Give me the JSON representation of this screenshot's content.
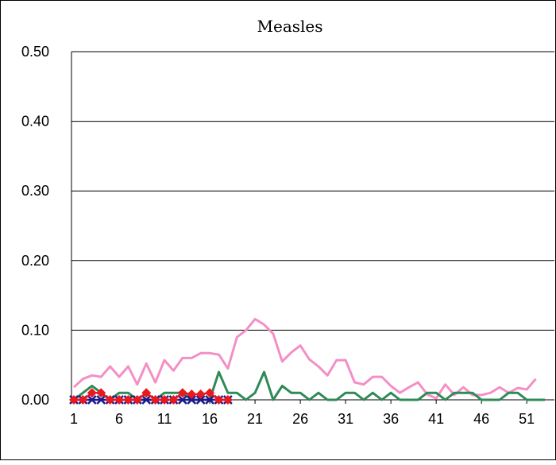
{
  "chart_data": {
    "type": "line",
    "title": "Measles",
    "xlabel": "",
    "ylabel": "",
    "ylim": [
      0,
      0.5
    ],
    "xlim": [
      1,
      53
    ],
    "y_ticks": [
      "0.00",
      "0.10",
      "0.20",
      "0.30",
      "0.40",
      "0.50"
    ],
    "x_ticks": [
      "1",
      "6",
      "11",
      "16",
      "21",
      "26",
      "31",
      "36",
      "41",
      "46",
      "51"
    ],
    "grid": "horizontal",
    "legend": "none",
    "series": [
      {
        "color": "#f48fc6",
        "marker": "none",
        "x": [
          1,
          2,
          3,
          4,
          5,
          6,
          7,
          8,
          9,
          10,
          11,
          12,
          13,
          14,
          15,
          16,
          17,
          18,
          19,
          20,
          21,
          22,
          23,
          24,
          25,
          26,
          27,
          28,
          29,
          30,
          31,
          32,
          33,
          34,
          35,
          36,
          37,
          38,
          39,
          40,
          41,
          42,
          43,
          44,
          45,
          46,
          47,
          48,
          49,
          50,
          51,
          52,
          53
        ],
        "values": [
          0.018,
          0.03,
          0.035,
          0.033,
          0.048,
          0.033,
          0.048,
          0.022,
          0.052,
          0.025,
          0.057,
          0.042,
          0.06,
          0.06,
          0.067,
          0.067,
          0.065,
          0.045,
          0.09,
          0.1,
          0.116,
          0.108,
          0.095,
          0.055,
          0.068,
          0.078,
          0.058,
          0.048,
          0.035,
          0.057,
          0.057,
          0.025,
          0.022,
          0.033,
          0.033,
          0.02,
          0.01,
          0.018,
          0.025,
          0.008,
          0.002,
          0.022,
          0.007,
          0.018,
          0.007,
          0.007,
          0.01,
          0.018,
          0.01,
          0.017,
          0.015,
          0.03,
          null
        ]
      },
      {
        "color": "#2e8b57",
        "marker": "none",
        "x": [
          1,
          2,
          3,
          4,
          5,
          6,
          7,
          8,
          9,
          10,
          11,
          12,
          13,
          14,
          15,
          16,
          17,
          18,
          19,
          20,
          21,
          22,
          23,
          24,
          25,
          26,
          27,
          28,
          29,
          30,
          31,
          32,
          33,
          34,
          35,
          36,
          37,
          38,
          39,
          40,
          41,
          42,
          43,
          44,
          45,
          46,
          47,
          48,
          49,
          50,
          51,
          52,
          53
        ],
        "values": [
          0,
          0.01,
          0.02,
          0.01,
          0,
          0.01,
          0.01,
          0,
          0,
          0,
          0.01,
          0.01,
          0.01,
          0,
          0,
          0,
          0.04,
          0.01,
          0.01,
          0,
          0.01,
          0.04,
          0,
          0.02,
          0.01,
          0.01,
          0,
          0.01,
          0,
          0,
          0.01,
          0.01,
          0,
          0.01,
          0,
          0.01,
          0,
          0,
          0,
          0.01,
          0.01,
          0,
          0.01,
          0.01,
          0.01,
          0,
          0,
          0,
          0.01,
          0.01,
          0,
          0,
          0
        ]
      },
      {
        "color": "#1a1a8c",
        "marker": "x",
        "x": [
          1,
          2,
          3,
          4,
          5,
          6,
          7,
          8,
          9,
          10,
          11,
          12,
          13,
          14,
          15,
          16,
          17,
          18
        ],
        "values": [
          0,
          0,
          0,
          0,
          0,
          0,
          0,
          0,
          0,
          0,
          0,
          0,
          0,
          0,
          0,
          0,
          0,
          0
        ]
      },
      {
        "color": "#e8191f",
        "marker": "diamond",
        "x": [
          1,
          2,
          3,
          4,
          5,
          6,
          7,
          8,
          9,
          10,
          11,
          12,
          13,
          14,
          15,
          16,
          17,
          18
        ],
        "values": [
          0,
          0,
          0.01,
          0.01,
          0,
          0,
          0,
          0,
          0.01,
          0,
          0,
          0,
          0.01,
          0.008,
          0.008,
          0.01,
          0,
          0
        ]
      }
    ]
  }
}
